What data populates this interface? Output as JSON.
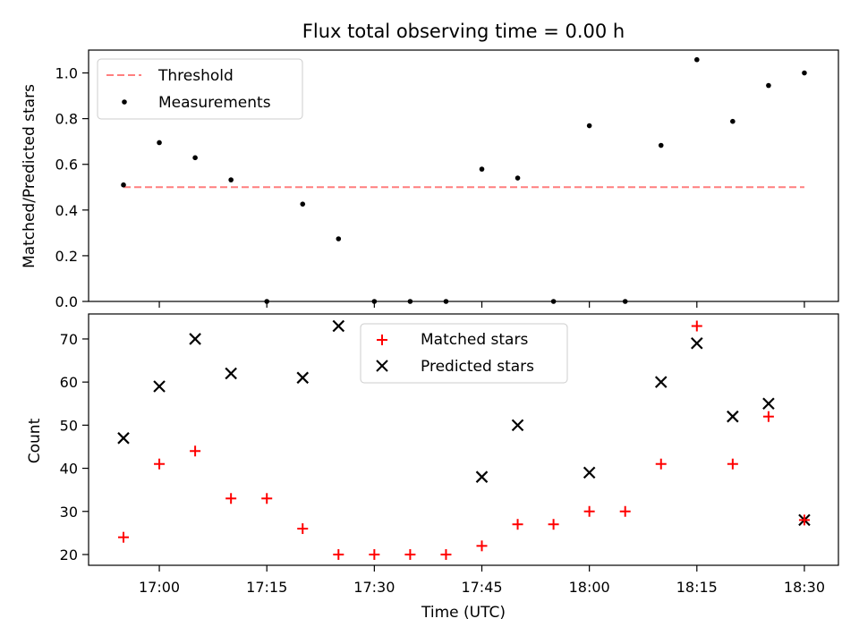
{
  "chart_data": [
    {
      "type": "scatter",
      "title": "Flux total observing time = 0.00 h",
      "xlabel": "",
      "ylabel": "Matched/Predicted stars",
      "ylim": [
        0.0,
        1.1
      ],
      "yticks": [
        "0.0",
        "0.2",
        "0.4",
        "0.6",
        "0.8",
        "1.0"
      ],
      "grid": false,
      "legend_position": "upper-left",
      "legend": [
        "Threshold",
        "Measurements"
      ],
      "threshold": {
        "name": "Threshold",
        "value": 0.5,
        "x_start": "16:55",
        "x_end": "18:30",
        "color": "#ff7f7f",
        "style": "dashed"
      },
      "series": [
        {
          "name": "Measurements",
          "marker": "dot",
          "color": "#000000",
          "points": [
            {
              "x": "16:55",
              "y": 0.51
            },
            {
              "x": "17:00",
              "y": 0.695
            },
            {
              "x": "17:05",
              "y": 0.629
            },
            {
              "x": "17:10",
              "y": 0.532
            },
            {
              "x": "17:15",
              "y": 0.0
            },
            {
              "x": "17:20",
              "y": 0.426
            },
            {
              "x": "17:25",
              "y": 0.274
            },
            {
              "x": "17:30",
              "y": 0.0
            },
            {
              "x": "17:35",
              "y": 0.0
            },
            {
              "x": "17:40",
              "y": 0.0
            },
            {
              "x": "17:45",
              "y": 0.579
            },
            {
              "x": "17:50",
              "y": 0.54
            },
            {
              "x": "17:55",
              "y": 0.0
            },
            {
              "x": "18:00",
              "y": 0.769
            },
            {
              "x": "18:05",
              "y": 0.0
            },
            {
              "x": "18:10",
              "y": 0.683
            },
            {
              "x": "18:15",
              "y": 1.058
            },
            {
              "x": "18:20",
              "y": 0.788
            },
            {
              "x": "18:25",
              "y": 0.945
            },
            {
              "x": "18:30",
              "y": 1.0
            }
          ]
        }
      ]
    },
    {
      "type": "scatter",
      "title": "",
      "xlabel": "Time (UTC)",
      "ylabel": "Count",
      "ylim": [
        17.5,
        75.8
      ],
      "yticks": [
        "20",
        "30",
        "40",
        "50",
        "60",
        "70"
      ],
      "xticks": [
        "17:00",
        "17:15",
        "17:30",
        "17:45",
        "18:00",
        "18:15",
        "18:30"
      ],
      "grid": false,
      "legend_position": "upper-center",
      "legend": [
        "Matched stars",
        "Predicted stars"
      ],
      "series": [
        {
          "name": "Matched stars",
          "marker": "plus",
          "color": "#ff0000",
          "points": [
            {
              "x": "16:55",
              "y": 24
            },
            {
              "x": "17:00",
              "y": 41
            },
            {
              "x": "17:05",
              "y": 44
            },
            {
              "x": "17:10",
              "y": 33
            },
            {
              "x": "17:15",
              "y": 33
            },
            {
              "x": "17:20",
              "y": 26
            },
            {
              "x": "17:25",
              "y": 20
            },
            {
              "x": "17:30",
              "y": 20
            },
            {
              "x": "17:35",
              "y": 20
            },
            {
              "x": "17:40",
              "y": 20
            },
            {
              "x": "17:45",
              "y": 22
            },
            {
              "x": "17:50",
              "y": 27
            },
            {
              "x": "17:55",
              "y": 27
            },
            {
              "x": "18:00",
              "y": 30
            },
            {
              "x": "18:05",
              "y": 30
            },
            {
              "x": "18:10",
              "y": 41
            },
            {
              "x": "18:15",
              "y": 73
            },
            {
              "x": "18:20",
              "y": 41
            },
            {
              "x": "18:25",
              "y": 52
            },
            {
              "x": "18:30",
              "y": 28
            }
          ]
        },
        {
          "name": "Predicted stars",
          "marker": "x",
          "color": "#000000",
          "points": [
            {
              "x": "16:55",
              "y": 47
            },
            {
              "x": "17:00",
              "y": 59
            },
            {
              "x": "17:05",
              "y": 70
            },
            {
              "x": "17:10",
              "y": 62
            },
            {
              "x": "17:20",
              "y": 61
            },
            {
              "x": "17:25",
              "y": 73
            },
            {
              "x": "17:45",
              "y": 38
            },
            {
              "x": "17:50",
              "y": 50
            },
            {
              "x": "18:00",
              "y": 39
            },
            {
              "x": "18:10",
              "y": 60
            },
            {
              "x": "18:15",
              "y": 69
            },
            {
              "x": "18:20",
              "y": 52
            },
            {
              "x": "18:25",
              "y": 55
            },
            {
              "x": "18:30",
              "y": 28
            }
          ]
        }
      ]
    }
  ]
}
